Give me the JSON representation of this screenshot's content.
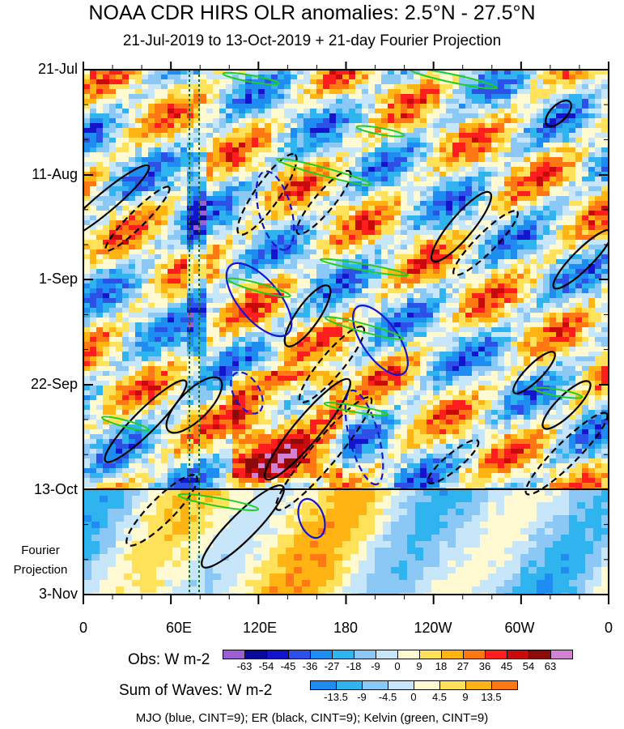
{
  "chart_data": {
    "type": "heatmap",
    "title": "NOAA CDR HIRS OLR anomalies: 2.5°N - 27.5°N",
    "subtitle": "21-Jul-2019 to 13-Oct-2019 + 21-day Fourier Projection",
    "x_ticks": [
      "0",
      "60E",
      "120E",
      "180",
      "120W",
      "60W",
      "0"
    ],
    "y_ticks": [
      "21-Jul",
      "11-Aug",
      "1-Sep",
      "22-Sep",
      "13-Oct",
      "3-Nov"
    ],
    "projection_label_line1": "Fourier",
    "projection_label_line2": "Projection",
    "obs_colorbar": {
      "label": "Obs: W m-2",
      "levels": [
        "-63",
        "-54",
        "-45",
        "-36",
        "-27",
        "-18",
        "-9",
        "0",
        "9",
        "18",
        "27",
        "36",
        "45",
        "54",
        "63"
      ],
      "colors": [
        "#9b5fd1",
        "#0a0a9a",
        "#1414cc",
        "#2d50e6",
        "#1e8cf0",
        "#30b4f0",
        "#8cc8f5",
        "#c8e6fa",
        "#fffad2",
        "#ffe15a",
        "#ffb414",
        "#ff7814",
        "#ff1e1e",
        "#c80a0a",
        "#8c0a0a",
        "#d282d2"
      ]
    },
    "waves_colorbar": {
      "label": "Sum of Waves: W m-2",
      "levels": [
        "-13.5",
        "-9",
        "-4.5",
        "0",
        "4.5",
        "9",
        "13.5"
      ],
      "colors": [
        "#1e8cf0",
        "#30b4f0",
        "#8cc8f5",
        "#c8e6fa",
        "#fffad2",
        "#ffe15a",
        "#ffb414",
        "#ff7814"
      ]
    },
    "legend_note": "MJO (blue, CINT=9); ER (black, CINT=9); Kelvin (green, CINT=9)",
    "series_colors": {
      "mjo": "#1414cc",
      "er": "#000000",
      "kelvin": "#22cc22"
    },
    "grid": false
  }
}
